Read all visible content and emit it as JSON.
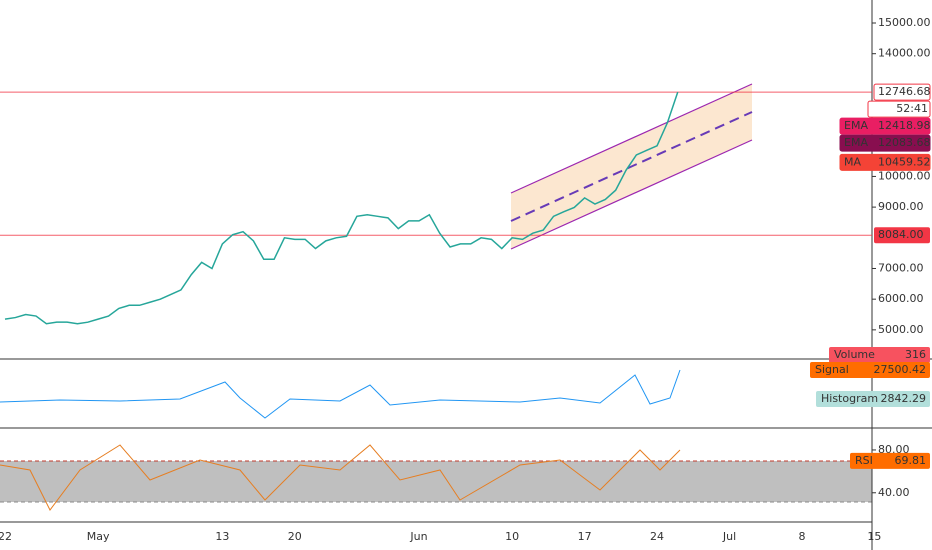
{
  "chart_data": {
    "type": "line",
    "categories": [
      "22",
      null,
      null,
      null,
      null,
      null,
      null,
      null,
      null,
      "May",
      null,
      null,
      null,
      null,
      null,
      null,
      null,
      null,
      null,
      null,
      null,
      "13",
      null,
      null,
      null,
      null,
      null,
      null,
      "20",
      null,
      null,
      null,
      null,
      null,
      null,
      null,
      null,
      null,
      null,
      null,
      "Jun",
      null,
      null,
      null,
      null,
      null,
      null,
      null,
      null,
      "10",
      null,
      null,
      null,
      null,
      null,
      null,
      "17",
      null,
      null,
      null,
      null,
      null,
      null,
      "24",
      null,
      null
    ],
    "values": [
      5350,
      5400,
      5500,
      5450,
      5200,
      5250,
      5250,
      5200,
      5250,
      5350,
      5450,
      5700,
      5800,
      5800,
      5900,
      6000,
      6150,
      6300,
      6800,
      7200,
      7000,
      7800,
      8100,
      8200,
      7900,
      7300,
      7300,
      8000,
      7950,
      7950,
      7650,
      7900,
      8000,
      8050,
      8700,
      8750,
      8700,
      8650,
      8300,
      8550,
      8550,
      8750,
      8150,
      7700,
      7800,
      7800,
      8000,
      7950,
      7650,
      8000,
      7950,
      8150,
      8250,
      8700,
      8850,
      8990,
      9300,
      9100,
      9250,
      9550,
      10200,
      10700,
      10850,
      11000,
      11750,
      12746.68
    ],
    "color": "#26a69a",
    "future_labels": [
      "Jul",
      "8",
      "15"
    ],
    "ylim": [
      4050,
      15750
    ],
    "yticks": [
      {
        "value": 5000,
        "label": "5000.00"
      },
      {
        "value": 6000,
        "label": "6000.00"
      },
      {
        "value": 7000,
        "label": "7000.00"
      },
      {
        "value": 9000,
        "label": "9000.00"
      },
      {
        "value": 10000,
        "label": "10000.00"
      },
      {
        "value": 14000,
        "label": "14000.00"
      },
      {
        "value": 15000,
        "label": "15000.00"
      }
    ],
    "price_lines": [
      {
        "value": 12746.68,
        "label": "12746.68",
        "color": "#f23645"
      },
      {
        "value": 8084,
        "label": "8084.00",
        "color": "#f23645"
      }
    ],
    "countdown": "52:41",
    "indicators": [
      {
        "name": "EMA",
        "value": 12418.98,
        "color": "#e91e63"
      },
      {
        "name": "EMA",
        "value": 12083.68,
        "color": "#880e4f"
      },
      {
        "name": "MA",
        "value": 10459.52,
        "color": "#f44336"
      }
    ],
    "volume": {
      "name": "Volume",
      "value": 316
    },
    "macd": {
      "signal": {
        "name": "Signal",
        "value": 27500.42
      },
      "histogram": {
        "name": "Histogram",
        "value": 2842.29
      }
    },
    "rsi": {
      "name": "RSI",
      "value": 69.81,
      "ylim": [
        12.7,
        100.5
      ],
      "yticks": [
        {
          "value": 80,
          "label": "80.00"
        },
        {
          "value": 40,
          "label": "40.00"
        }
      ]
    }
  }
}
